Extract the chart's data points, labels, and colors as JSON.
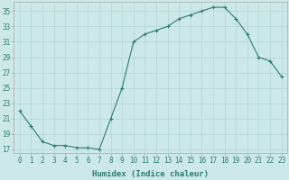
{
  "x": [
    0,
    1,
    2,
    3,
    4,
    5,
    6,
    7,
    8,
    9,
    10,
    11,
    12,
    13,
    14,
    15,
    16,
    17,
    18,
    19,
    20,
    21,
    22,
    23
  ],
  "y": [
    22,
    20,
    18,
    17.5,
    17.5,
    17.2,
    17.2,
    17,
    21,
    25,
    31,
    32,
    32.5,
    33,
    34,
    34.5,
    35,
    35.5,
    35.5,
    34,
    32,
    29,
    28.5,
    26.5
  ],
  "line_color": "#2e7d6e",
  "marker": "+",
  "bg_color": "#cce8e8",
  "grid_color": "#b8d8d8",
  "xlabel": "Humidex (Indice chaleur)",
  "ylabel_ticks": [
    17,
    19,
    21,
    23,
    25,
    27,
    29,
    31,
    33,
    35
  ],
  "xlim": [
    -0.5,
    23.5
  ],
  "ylim": [
    16.5,
    36.2
  ],
  "xticks": [
    0,
    1,
    2,
    3,
    4,
    5,
    6,
    7,
    8,
    9,
    10,
    11,
    12,
    13,
    14,
    15,
    16,
    17,
    18,
    19,
    20,
    21,
    22,
    23
  ],
  "xlabel_fontsize": 6.5,
  "tick_fontsize": 5.5
}
